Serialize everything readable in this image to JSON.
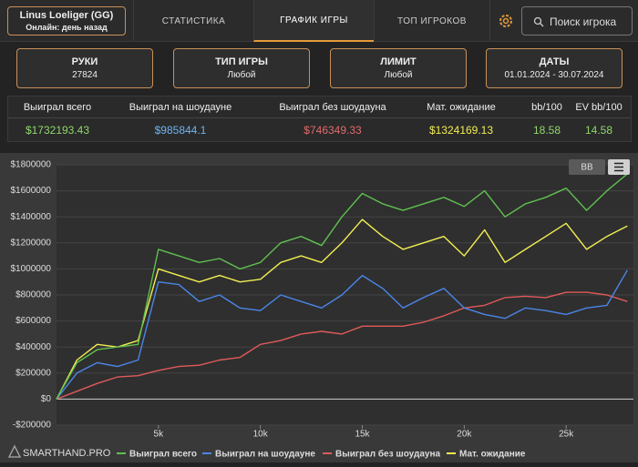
{
  "header": {
    "player_name": "Linus Loeliger (GG)",
    "status": "Онлайн: день назад",
    "tabs": [
      "СТАТИСТИКА",
      "ГРАФИК ИГРЫ",
      "ТОП ИГРОКОВ"
    ],
    "search_placeholder": "Поиск игрока"
  },
  "filters": [
    {
      "label": "РУКИ",
      "value": "27824"
    },
    {
      "label": "ТИП ИГРЫ",
      "value": "Любой"
    },
    {
      "label": "ЛИМИТ",
      "value": "Любой"
    },
    {
      "label": "ДАТЫ",
      "value": "01.01.2024 - 30.07.2024"
    }
  ],
  "stats": {
    "headers": [
      "Выиграл всего",
      "Выиграл на шоудауне",
      "Выиграл без шоудауна",
      "Мат. ожидание",
      "bb/100",
      "EV bb/100"
    ],
    "values": [
      "$1732193.43",
      "$985844.1",
      "$746349.33",
      "$1324169.13",
      "18.58",
      "14.58"
    ]
  },
  "chart_controls": {
    "button": "BB"
  },
  "watermark": "SMARTHAND.PRO",
  "chart_data": {
    "type": "line",
    "x": [
      0,
      1000,
      2000,
      3000,
      4000,
      5000,
      6000,
      7000,
      8000,
      9000,
      10000,
      11000,
      12000,
      13000,
      14000,
      15000,
      16000,
      17000,
      18000,
      19000,
      20000,
      21000,
      22000,
      23000,
      24000,
      25000,
      26000,
      27000,
      28000
    ],
    "series": [
      {
        "name": "Выиграл всего",
        "color": "#5fc04f",
        "values": [
          0,
          280000,
          380000,
          400000,
          420000,
          1150000,
          1100000,
          1050000,
          1080000,
          1000000,
          1050000,
          1200000,
          1250000,
          1180000,
          1400000,
          1580000,
          1500000,
          1450000,
          1500000,
          1550000,
          1480000,
          1600000,
          1400000,
          1500000,
          1550000,
          1620000,
          1450000,
          1600000,
          1730000
        ]
      },
      {
        "name": "Выиграл на шоудауне",
        "color": "#4a86e8",
        "values": [
          0,
          200000,
          280000,
          250000,
          300000,
          900000,
          880000,
          750000,
          800000,
          700000,
          680000,
          800000,
          750000,
          700000,
          800000,
          950000,
          850000,
          700000,
          780000,
          850000,
          700000,
          650000,
          620000,
          700000,
          680000,
          650000,
          700000,
          720000,
          990000
        ]
      },
      {
        "name": "Выиграл без шоудауна",
        "color": "#e05a5a",
        "values": [
          0,
          60000,
          120000,
          170000,
          180000,
          220000,
          250000,
          260000,
          300000,
          320000,
          420000,
          450000,
          500000,
          520000,
          500000,
          560000,
          560000,
          560000,
          590000,
          640000,
          700000,
          720000,
          780000,
          790000,
          780000,
          820000,
          820000,
          800000,
          750000
        ]
      },
      {
        "name": "Мат. ожидание",
        "color": "#f2ee52",
        "values": [
          0,
          300000,
          420000,
          400000,
          450000,
          1000000,
          950000,
          900000,
          950000,
          900000,
          920000,
          1050000,
          1100000,
          1050000,
          1200000,
          1380000,
          1250000,
          1150000,
          1200000,
          1250000,
          1100000,
          1300000,
          1050000,
          1150000,
          1250000,
          1350000,
          1150000,
          1250000,
          1330000
        ]
      }
    ],
    "xlim": [
      0,
      28300
    ],
    "xticks": [
      {
        "value": 5000,
        "label": "5k"
      },
      {
        "value": 10000,
        "label": "10k"
      },
      {
        "value": 15000,
        "label": "15k"
      },
      {
        "value": 20000,
        "label": "20k"
      },
      {
        "value": 25000,
        "label": "25k"
      }
    ],
    "ylim": [
      -200000,
      1800000
    ],
    "yticks": [
      {
        "value": -200000,
        "label": "-$200000"
      },
      {
        "value": 0,
        "label": "$0"
      },
      {
        "value": 200000,
        "label": "$200000"
      },
      {
        "value": 400000,
        "label": "$400000"
      },
      {
        "value": 600000,
        "label": "$600000"
      },
      {
        "value": 800000,
        "label": "$800000"
      },
      {
        "value": 1000000,
        "label": "$1000000"
      },
      {
        "value": 1200000,
        "label": "$1200000"
      },
      {
        "value": 1400000,
        "label": "$1400000"
      },
      {
        "value": 1600000,
        "label": "$1600000"
      },
      {
        "value": 1800000,
        "label": "$1800000"
      }
    ],
    "grid": true
  }
}
